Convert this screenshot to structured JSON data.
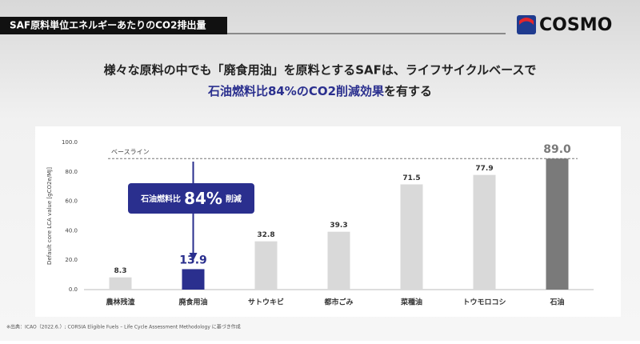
{
  "header": {
    "label": "SAF原料単位エネルギーあたりのCO2排出量",
    "logo": "COSMO"
  },
  "headline": {
    "line1": "様々な原料の中でも「廃食用油」を原料とするSAFは、ライフサイクルベースで",
    "line2_highlight": "石油燃料比84%のCO2削減効果",
    "line2_rest": "を有する"
  },
  "chart_data": {
    "type": "bar",
    "y_label": "Default core LCA value [gCO2e/MJ]",
    "categories": [
      "農林残渣",
      "廃食用油",
      "サトウキビ",
      "都市ごみ",
      "菜種油",
      "トウモロコシ",
      "石油"
    ],
    "values": [
      8.3,
      13.9,
      32.8,
      39.3,
      71.5,
      77.9,
      89.0
    ],
    "value_labels": [
      "8.3",
      "13.9",
      "32.8",
      "39.3",
      "71.5",
      "77.9",
      "89.0"
    ],
    "colors": [
      "#d9d9d9",
      "#2a2f8e",
      "#d9d9d9",
      "#d9d9d9",
      "#d9d9d9",
      "#d9d9d9",
      "#7a7a7a"
    ],
    "ylim": [
      0,
      100
    ],
    "yticks": [
      {
        "value": 0,
        "label": "0.0"
      },
      {
        "value": 20,
        "label": "20.0"
      },
      {
        "value": 40,
        "label": "40.0"
      },
      {
        "value": 60,
        "label": "60.0"
      },
      {
        "value": 80,
        "label": "80.0"
      },
      {
        "value": 100,
        "label": "100.0"
      }
    ],
    "reference_line": {
      "value": 89.0,
      "label": "ベースライン"
    },
    "callout": {
      "prefix": "石油燃料比",
      "figure": "84%",
      "suffix": "削減"
    }
  },
  "footnote": "※出典：ICAO（2022.6.）; CORSIA Eligible Fuels – Life Cycle Assessment Methodology に基づき作成"
}
